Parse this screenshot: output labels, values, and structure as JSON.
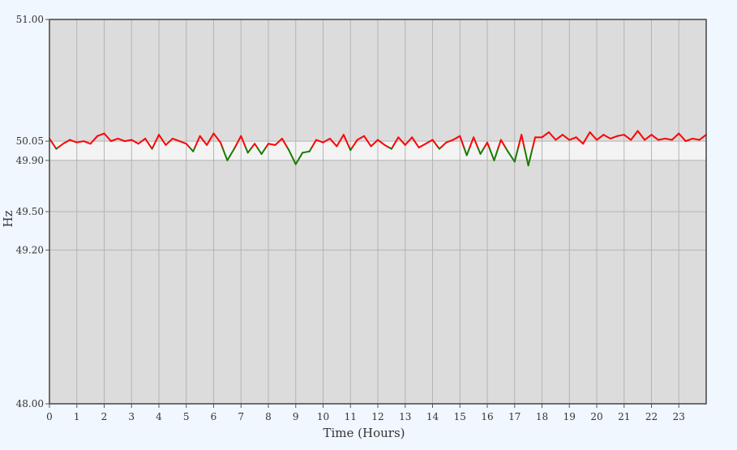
{
  "chart_data": {
    "type": "line",
    "title": "",
    "xlabel": "Time (Hours)",
    "ylabel": "Hz",
    "xlim": [
      0,
      24
    ],
    "ylim": [
      48.0,
      51.0
    ],
    "x_ticks": [
      "0",
      "1",
      "2",
      "3",
      "4",
      "5",
      "6",
      "7",
      "8",
      "9",
      "10",
      "11",
      "12",
      "13",
      "14",
      "15",
      "16",
      "17",
      "18",
      "19",
      "20",
      "21",
      "22",
      "23"
    ],
    "y_ticks": [
      "51.00",
      "50.05",
      "49.90",
      "49.50",
      "49.20",
      "48.00"
    ],
    "band": {
      "low": 49.9,
      "high": 50.05,
      "color": "#f3f3f3"
    },
    "colors": {
      "background": "#dcdcdc",
      "page": "#f0f7fe",
      "above_threshold": "#ff0000",
      "below_threshold": "#1a7a00",
      "grid": "#b4b4b4"
    },
    "threshold": 50.0,
    "grid": true,
    "series": [
      {
        "x": [
          0.0,
          0.25,
          0.5,
          0.75,
          1.0,
          1.25,
          1.5,
          1.75,
          2.0,
          2.25,
          2.5,
          2.75,
          3.0,
          3.25,
          3.5,
          3.75,
          4.0,
          4.25,
          4.5,
          4.75,
          5.0,
          5.25,
          5.5,
          5.75,
          6.0,
          6.25,
          6.5,
          6.75,
          7.0,
          7.25,
          7.5,
          7.75,
          8.0,
          8.25,
          8.5,
          8.75,
          9.0,
          9.25,
          9.5,
          9.75,
          10.0,
          10.25,
          10.5,
          10.75,
          11.0,
          11.25,
          11.5,
          11.75,
          12.0,
          12.25,
          12.5,
          12.75,
          13.0,
          13.25,
          13.5,
          13.75,
          14.0,
          14.25,
          14.5,
          14.75,
          15.0,
          15.25,
          15.5,
          15.75,
          16.0,
          16.25,
          16.5,
          16.75,
          17.0,
          17.25,
          17.5,
          17.75,
          18.0,
          18.25,
          18.5,
          18.75,
          19.0,
          19.25,
          19.5,
          19.75,
          20.0,
          20.25,
          20.5,
          20.75,
          21.0,
          21.25,
          21.5,
          21.75,
          22.0,
          22.25,
          22.5,
          22.75,
          23.0,
          23.25,
          23.5,
          23.75,
          24.0
        ],
        "values": [
          50.07,
          49.99,
          50.03,
          50.06,
          50.04,
          50.05,
          50.03,
          50.09,
          50.11,
          50.05,
          50.07,
          50.05,
          50.06,
          50.03,
          50.07,
          49.99,
          50.1,
          50.02,
          50.07,
          50.05,
          50.03,
          49.97,
          50.09,
          50.02,
          50.11,
          50.04,
          49.9,
          49.99,
          50.09,
          49.96,
          50.03,
          49.95,
          50.03,
          50.02,
          50.07,
          49.98,
          49.87,
          49.96,
          49.97,
          50.06,
          50.04,
          50.07,
          50.01,
          50.1,
          49.98,
          50.06,
          50.09,
          50.01,
          50.06,
          50.02,
          49.99,
          50.08,
          50.02,
          50.08,
          50.0,
          50.03,
          50.06,
          49.99,
          50.04,
          50.06,
          50.09,
          49.94,
          50.08,
          49.95,
          50.04,
          49.9,
          50.06,
          49.97,
          49.89,
          50.1,
          49.86,
          50.08,
          50.08,
          50.12,
          50.06,
          50.1,
          50.06,
          50.08,
          50.03,
          50.12,
          50.06,
          50.1,
          50.07,
          50.09,
          50.1,
          50.06,
          50.13,
          50.06,
          50.1,
          50.06,
          50.07,
          50.06,
          50.11,
          50.05,
          50.07,
          50.06,
          50.1
        ]
      }
    ]
  }
}
